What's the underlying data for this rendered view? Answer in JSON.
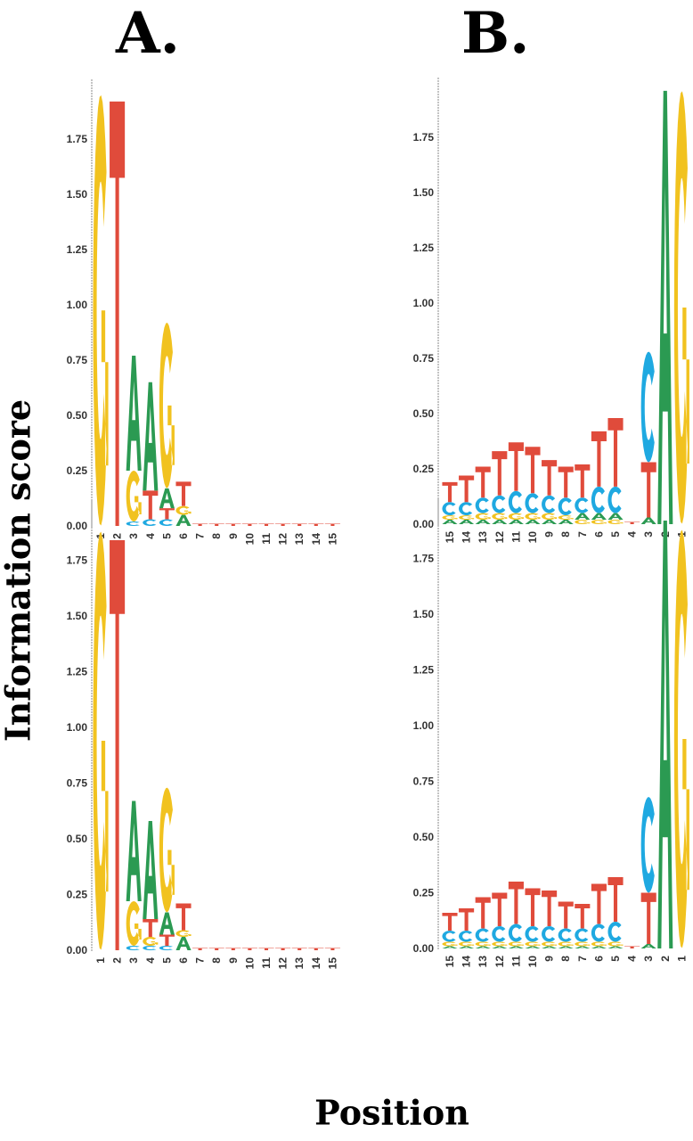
{
  "figure": {
    "ylabel": "Information score",
    "xlabel": "Position",
    "panel_labels": [
      "A.",
      "B."
    ]
  },
  "colors": {
    "A": "#2b9a52",
    "C": "#1fa9e1",
    "G": "#f1c21f",
    "T": "#e04b3b"
  },
  "chart_data": [
    {
      "type": "sequence-logo",
      "panel": "A. top",
      "ylabel": "Information score",
      "xlabel": "Position",
      "ylim": [
        0,
        2
      ],
      "yticks": [
        "0.00",
        "0.25",
        "0.50",
        "0.75",
        "1.00",
        "1.25",
        "1.50",
        "1.75"
      ],
      "positions": [
        "1",
        "2",
        "3",
        "4",
        "5",
        "6",
        "7",
        "8",
        "9",
        "10",
        "11",
        "12",
        "13",
        "14",
        "15"
      ],
      "stacks": [
        [
          [
            "G",
            1.95
          ]
        ],
        [
          [
            "T",
            1.92
          ]
        ],
        [
          [
            "C",
            0.02
          ],
          [
            "G",
            0.23
          ],
          [
            "A",
            0.52
          ]
        ],
        [
          [
            "C",
            0.03
          ],
          [
            "T",
            0.13
          ],
          [
            "A",
            0.49
          ]
        ],
        [
          [
            "C",
            0.03
          ],
          [
            "T",
            0.05
          ],
          [
            "A",
            0.09
          ],
          [
            "G",
            0.75
          ]
        ],
        [
          [
            "A",
            0.05
          ],
          [
            "G",
            0.04
          ],
          [
            "T",
            0.11
          ]
        ],
        [
          [
            "T",
            0.01
          ]
        ],
        [
          [
            "T",
            0.01
          ]
        ],
        [
          [
            "T",
            0.01
          ]
        ],
        [
          [
            "T",
            0.01
          ]
        ],
        [
          [
            "T",
            0.01
          ]
        ],
        [
          [
            "T",
            0.01
          ]
        ],
        [
          [
            "T",
            0.01
          ]
        ],
        [
          [
            "T",
            0.01
          ]
        ],
        [
          [
            "T",
            0.01
          ]
        ]
      ]
    },
    {
      "type": "sequence-logo",
      "panel": "B. top",
      "ylabel": "Information score",
      "xlabel": "Position",
      "ylim": [
        0,
        2
      ],
      "yticks": [
        "0.00",
        "0.25",
        "0.50",
        "0.75",
        "1.00",
        "1.25",
        "1.50",
        "1.75"
      ],
      "positions": [
        "15",
        "14",
        "13",
        "12",
        "11",
        "10",
        "9",
        "8",
        "7",
        "6",
        "5",
        "4",
        "3",
        "2",
        "1"
      ],
      "stacks": [
        [
          [
            "A",
            0.02
          ],
          [
            "G",
            0.02
          ],
          [
            "C",
            0.06
          ],
          [
            "T",
            0.09
          ]
        ],
        [
          [
            "A",
            0.02
          ],
          [
            "G",
            0.02
          ],
          [
            "C",
            0.06
          ],
          [
            "T",
            0.12
          ]
        ],
        [
          [
            "A",
            0.02
          ],
          [
            "G",
            0.03
          ],
          [
            "C",
            0.07
          ],
          [
            "T",
            0.14
          ]
        ],
        [
          [
            "A",
            0.02
          ],
          [
            "G",
            0.03
          ],
          [
            "C",
            0.08
          ],
          [
            "T",
            0.2
          ]
        ],
        [
          [
            "A",
            0.02
          ],
          [
            "G",
            0.03
          ],
          [
            "C",
            0.1
          ],
          [
            "T",
            0.22
          ]
        ],
        [
          [
            "A",
            0.02
          ],
          [
            "G",
            0.03
          ],
          [
            "C",
            0.09
          ],
          [
            "T",
            0.21
          ]
        ],
        [
          [
            "A",
            0.02
          ],
          [
            "G",
            0.03
          ],
          [
            "C",
            0.08
          ],
          [
            "T",
            0.16
          ]
        ],
        [
          [
            "A",
            0.02
          ],
          [
            "G",
            0.02
          ],
          [
            "C",
            0.08
          ],
          [
            "T",
            0.14
          ]
        ],
        [
          [
            "G",
            0.02
          ],
          [
            "A",
            0.03
          ],
          [
            "C",
            0.07
          ],
          [
            "T",
            0.15
          ]
        ],
        [
          [
            "G",
            0.02
          ],
          [
            "A",
            0.03
          ],
          [
            "C",
            0.12
          ],
          [
            "T",
            0.25
          ]
        ],
        [
          [
            "G",
            0.02
          ],
          [
            "A",
            0.03
          ],
          [
            "C",
            0.12
          ],
          [
            "T",
            0.31
          ]
        ],
        [
          [
            "T",
            0.01
          ]
        ],
        [
          [
            "A",
            0.03
          ],
          [
            "T",
            0.25
          ],
          [
            "C",
            0.5
          ]
        ],
        [
          [
            "A",
            1.96
          ]
        ],
        [
          [
            "G",
            1.96
          ]
        ]
      ]
    },
    {
      "type": "sequence-logo",
      "panel": "A. bottom",
      "ylabel": "Information score",
      "xlabel": "Position",
      "ylim": [
        0,
        2
      ],
      "yticks": [
        "0.00",
        "0.25",
        "0.50",
        "0.75",
        "1.00",
        "1.25",
        "1.50",
        "1.75"
      ],
      "positions": [
        "1",
        "2",
        "3",
        "4",
        "5",
        "6",
        "7",
        "8",
        "9",
        "10",
        "11",
        "12",
        "13",
        "14",
        "15"
      ],
      "stacks": [
        [
          [
            "G",
            1.88
          ]
        ],
        [
          [
            "T",
            1.84
          ]
        ],
        [
          [
            "C",
            0.02
          ],
          [
            "G",
            0.2
          ],
          [
            "A",
            0.45
          ]
        ],
        [
          [
            "C",
            0.02
          ],
          [
            "G",
            0.04
          ],
          [
            "T",
            0.08
          ],
          [
            "A",
            0.44
          ]
        ],
        [
          [
            "C",
            0.02
          ],
          [
            "T",
            0.05
          ],
          [
            "A",
            0.1
          ],
          [
            "G",
            0.56
          ]
        ],
        [
          [
            "A",
            0.06
          ],
          [
            "G",
            0.03
          ],
          [
            "T",
            0.12
          ]
        ],
        [
          [
            "T",
            0.01
          ]
        ],
        [
          [
            "T",
            0.01
          ]
        ],
        [
          [
            "T",
            0.01
          ]
        ],
        [
          [
            "T",
            0.01
          ]
        ],
        [
          [
            "T",
            0.01
          ]
        ],
        [
          [
            "T",
            0.01
          ]
        ],
        [
          [
            "T",
            0.01
          ]
        ],
        [
          [
            "T",
            0.01
          ]
        ],
        [
          [
            "T",
            0.01
          ]
        ]
      ]
    },
    {
      "type": "sequence-logo",
      "panel": "B. bottom",
      "ylabel": "Information score",
      "xlabel": "Position",
      "ylim": [
        0,
        2
      ],
      "yticks": [
        "0.00",
        "0.25",
        "0.50",
        "0.75",
        "1.00",
        "1.25",
        "1.50",
        "1.75"
      ],
      "positions": [
        "15",
        "14",
        "13",
        "12",
        "11",
        "10",
        "9",
        "8",
        "7",
        "6",
        "5",
        "4",
        "3",
        "2",
        "1"
      ],
      "stacks": [
        [
          [
            "A",
            0.01
          ],
          [
            "G",
            0.02
          ],
          [
            "C",
            0.05
          ],
          [
            "T",
            0.08
          ]
        ],
        [
          [
            "A",
            0.01
          ],
          [
            "G",
            0.02
          ],
          [
            "C",
            0.05
          ],
          [
            "T",
            0.1
          ]
        ],
        [
          [
            "A",
            0.01
          ],
          [
            "G",
            0.02
          ],
          [
            "C",
            0.06
          ],
          [
            "T",
            0.14
          ]
        ],
        [
          [
            "A",
            0.01
          ],
          [
            "G",
            0.02
          ],
          [
            "C",
            0.07
          ],
          [
            "T",
            0.15
          ]
        ],
        [
          [
            "A",
            0.01
          ],
          [
            "G",
            0.02
          ],
          [
            "C",
            0.08
          ],
          [
            "T",
            0.19
          ]
        ],
        [
          [
            "A",
            0.01
          ],
          [
            "G",
            0.02
          ],
          [
            "C",
            0.07
          ],
          [
            "T",
            0.17
          ]
        ],
        [
          [
            "A",
            0.01
          ],
          [
            "G",
            0.02
          ],
          [
            "C",
            0.07
          ],
          [
            "T",
            0.16
          ]
        ],
        [
          [
            "A",
            0.01
          ],
          [
            "G",
            0.02
          ],
          [
            "C",
            0.06
          ],
          [
            "T",
            0.12
          ]
        ],
        [
          [
            "A",
            0.01
          ],
          [
            "G",
            0.02
          ],
          [
            "C",
            0.06
          ],
          [
            "T",
            0.11
          ]
        ],
        [
          [
            "A",
            0.01
          ],
          [
            "G",
            0.02
          ],
          [
            "C",
            0.08
          ],
          [
            "T",
            0.18
          ]
        ],
        [
          [
            "A",
            0.01
          ],
          [
            "G",
            0.02
          ],
          [
            "C",
            0.09
          ],
          [
            "T",
            0.2
          ]
        ],
        [
          [
            "T",
            0.01
          ]
        ],
        [
          [
            "A",
            0.02
          ],
          [
            "T",
            0.23
          ],
          [
            "C",
            0.43
          ]
        ],
        [
          [
            "A",
            1.92
          ]
        ],
        [
          [
            "G",
            1.88
          ]
        ]
      ]
    }
  ]
}
